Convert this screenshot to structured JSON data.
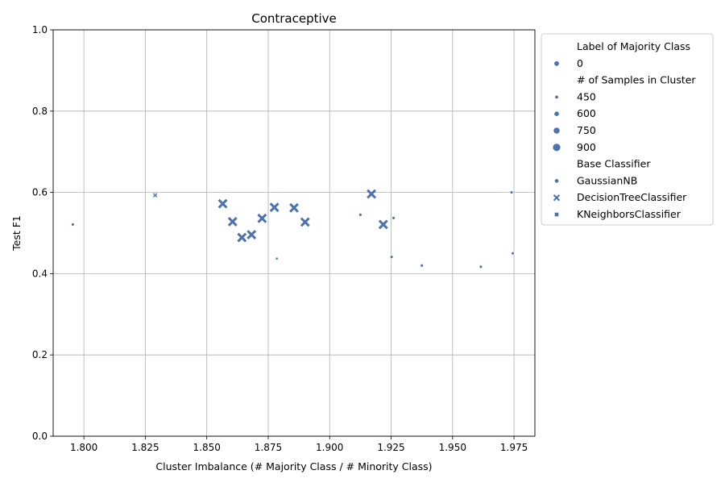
{
  "chart_data": {
    "type": "scatter",
    "title": "Contraceptive",
    "xlabel": "Cluster Imbalance (# Majority Class / # Minority Class)",
    "ylabel": "Test F1",
    "xlim": [
      1.7875,
      1.9835
    ],
    "ylim": [
      0,
      1
    ],
    "xticks": [
      1.8,
      1.825,
      1.85,
      1.875,
      1.9,
      1.925,
      1.95,
      1.975
    ],
    "xtick_labels": [
      "1.800",
      "1.825",
      "1.850",
      "1.875",
      "1.900",
      "1.925",
      "1.950",
      "1.975"
    ],
    "yticks": [
      0,
      0.2,
      0.4,
      0.6,
      0.8,
      1.0
    ],
    "ytick_labels": [
      "0.0",
      "0.2",
      "0.4",
      "0.6",
      "0.8",
      "1.0"
    ],
    "grid": true,
    "legend_placement": "outside-right-top",
    "point_color": "#4c72b0",
    "legend": {
      "hue_title": "Label of Majority Class",
      "hue_items": [
        {
          "label": "0",
          "color": "#4c72b0"
        }
      ],
      "size_title": "# of Samples in Cluster",
      "size_items": [
        {
          "label": "450",
          "size": 450
        },
        {
          "label": "600",
          "size": 600
        },
        {
          "label": "750",
          "size": 750
        },
        {
          "label": "900",
          "size": 900
        }
      ],
      "style_title": "Base Classifier",
      "style_items": [
        {
          "label": "GaussianNB",
          "marker": "circle"
        },
        {
          "label": "DecisionTreeClassifier",
          "marker": "x"
        },
        {
          "label": "KNeighborsClassifier",
          "marker": "square"
        }
      ]
    },
    "points": [
      {
        "x": 1.7955,
        "y": 0.521,
        "classifier": "GaussianNB",
        "samples": 470
      },
      {
        "x": 1.829,
        "y": 0.593,
        "classifier": "DecisionTreeClassifier",
        "samples": 440
      },
      {
        "x": 1.8565,
        "y": 0.572,
        "classifier": "DecisionTreeClassifier",
        "samples": 850
      },
      {
        "x": 1.8605,
        "y": 0.528,
        "classifier": "DecisionTreeClassifier",
        "samples": 850
      },
      {
        "x": 1.8643,
        "y": 0.489,
        "classifier": "DecisionTreeClassifier",
        "samples": 850
      },
      {
        "x": 1.8682,
        "y": 0.496,
        "classifier": "DecisionTreeClassifier",
        "samples": 850
      },
      {
        "x": 1.8725,
        "y": 0.536,
        "classifier": "DecisionTreeClassifier",
        "samples": 850
      },
      {
        "x": 1.8775,
        "y": 0.563,
        "classifier": "DecisionTreeClassifier",
        "samples": 850
      },
      {
        "x": 1.8785,
        "y": 0.437,
        "classifier": "KNeighborsClassifier",
        "samples": 450
      },
      {
        "x": 1.8855,
        "y": 0.562,
        "classifier": "DecisionTreeClassifier",
        "samples": 850
      },
      {
        "x": 1.89,
        "y": 0.527,
        "classifier": "DecisionTreeClassifier",
        "samples": 850
      },
      {
        "x": 1.9125,
        "y": 0.545,
        "classifier": "GaussianNB",
        "samples": 470
      },
      {
        "x": 1.917,
        "y": 0.596,
        "classifier": "DecisionTreeClassifier",
        "samples": 850
      },
      {
        "x": 1.9218,
        "y": 0.521,
        "classifier": "DecisionTreeClassifier",
        "samples": 850
      },
      {
        "x": 1.9252,
        "y": 0.441,
        "classifier": "GaussianNB",
        "samples": 470
      },
      {
        "x": 1.926,
        "y": 0.537,
        "classifier": "GaussianNB",
        "samples": 470
      },
      {
        "x": 1.9375,
        "y": 0.42,
        "classifier": "GaussianNB",
        "samples": 470
      },
      {
        "x": 1.9615,
        "y": 0.417,
        "classifier": "GaussianNB",
        "samples": 470
      },
      {
        "x": 1.974,
        "y": 0.6,
        "classifier": "GaussianNB",
        "samples": 470
      },
      {
        "x": 1.9745,
        "y": 0.45,
        "classifier": "GaussianNB",
        "samples": 470
      }
    ]
  }
}
